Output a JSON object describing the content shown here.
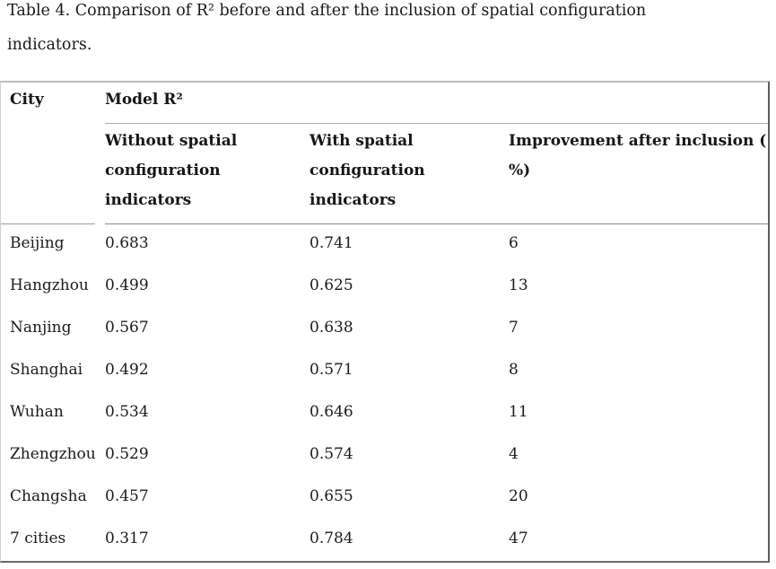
{
  "caption": "Table 4. Comparison of R² before and after the inclusion of spatial configuration\nindicators.",
  "table": {
    "corner_header": "City",
    "group_header": "Model R²",
    "sub_headers": [
      "Without spatial\nconfiguration\nindicators",
      "With spatial\nconfiguration\nindicators",
      "Improvement after inclusion (\n%)"
    ],
    "rows": [
      {
        "city": "Beijing",
        "without": "0.683",
        "with": "0.741",
        "improvement": "6"
      },
      {
        "city": "Hangzhou",
        "without": "0.499",
        "with": "0.625",
        "improvement": "13"
      },
      {
        "city": "Nanjing",
        "without": "0.567",
        "with": "0.638",
        "improvement": "7"
      },
      {
        "city": "Shanghai",
        "without": "0.492",
        "with": "0.571",
        "improvement": "8"
      },
      {
        "city": "Wuhan",
        "without": "0.534",
        "with": "0.646",
        "improvement": "11"
      },
      {
        "city": "Zhengzhou",
        "without": "0.529",
        "with": "0.574",
        "improvement": "4"
      },
      {
        "city": "Changsha",
        "without": "0.457",
        "with": "0.655",
        "improvement": "20"
      },
      {
        "city": "7 cities",
        "without": "0.317",
        "with": "0.784",
        "improvement": "47"
      }
    ]
  },
  "colors": {
    "text": "#1b1b1b",
    "border_top": "#bcbcbc",
    "border_bottom": "#6b6b6b",
    "border_right": "#5d5d5d",
    "border_left": "#d2d2d2",
    "divider_under_group": "#acacac",
    "divider_under_subheaders": "#8c8c8c"
  }
}
